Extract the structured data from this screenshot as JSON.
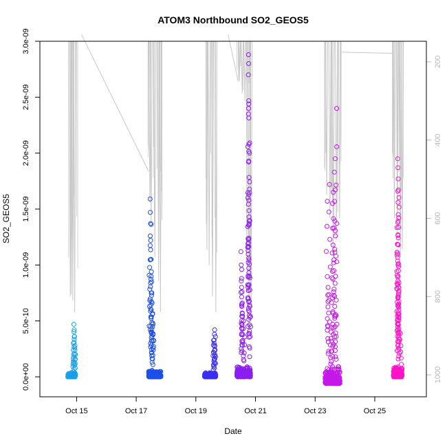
{
  "chart_data": {
    "type": "scatter",
    "title": "ATOM3 Northbound SO2_GEOS5",
    "xlabel": "Date",
    "ylabel": "SO2_GEOS5",
    "xlim": [
      "2017-10-14T00:00",
      "2017-10-26T12:00"
    ],
    "ylim": [
      -1e-10,
      3e-09
    ],
    "x_ticks": [
      "Oct 15",
      "Oct 17",
      "Oct 19",
      "Oct 21",
      "Oct 23",
      "Oct 25"
    ],
    "y_ticks": [
      "0.0e+00",
      "5.0e-10",
      "1.0e-09",
      "1.5e-09",
      "2.0e-09",
      "2.5e-09",
      "3.0e-09"
    ],
    "right_axis": {
      "quantity": "pressure",
      "ticks": [
        "200",
        "400",
        "600",
        "800",
        "1000"
      ],
      "range": [
        130,
        1045
      ],
      "inverted": true,
      "color": "#b8b8b8"
    },
    "series": [
      {
        "color": "#1a9fe8",
        "x_range": [
          "2017-10-14T17:00",
          "2017-10-14T23:00"
        ],
        "y_base": [
          0,
          4e-11
        ],
        "peaks": [
          [
            0.8,
            4.7e-10
          ],
          [
            0.85,
            4.2e-10
          ],
          [
            0.9,
            3.6e-10
          ],
          [
            0.95,
            2.8e-10
          ],
          [
            0.7,
            1.6e-10
          ]
        ]
      },
      {
        "color": "#1d4fe8",
        "x_range": [
          "2017-10-17T10:00",
          "2017-10-17T20:00"
        ],
        "y_base": [
          0,
          6e-11
        ],
        "peaks": [
          [
            0.12,
            1.59e-09
          ],
          [
            0.13,
            1.47e-09
          ],
          [
            0.15,
            1.37e-09
          ],
          [
            0.16,
            1.22e-09
          ],
          [
            0.2,
            1.05e-09
          ],
          [
            0.22,
            9.4e-10
          ],
          [
            0.24,
            8.5e-10
          ],
          [
            0.26,
            7.5e-10
          ],
          [
            0.28,
            6.6e-10
          ],
          [
            0.3,
            5.6e-10
          ],
          [
            0.32,
            4.5e-10
          ],
          [
            0.34,
            3.8e-10
          ]
        ]
      },
      {
        "color": "#3a2ef2",
        "x_range": [
          "2017-10-19T07:00",
          "2017-10-19T16:00"
        ],
        "y_base": [
          0,
          4e-11
        ],
        "peaks": [
          [
            0.9,
            4.2e-10
          ],
          [
            0.88,
            3.8e-10
          ],
          [
            0.86,
            3.3e-10
          ],
          [
            0.92,
            2.8e-10
          ],
          [
            0.8,
            2.2e-10
          ]
        ]
      },
      {
        "color": "#8a1ff0",
        "x_range": [
          "2017-10-20T09:00",
          "2017-10-20T20:00"
        ],
        "y_base": [
          0,
          1e-10
        ],
        "peaks": [
          [
            0.85,
            2.88e-09
          ],
          [
            0.86,
            2.8e-09
          ],
          [
            0.84,
            2.7e-09
          ],
          [
            0.87,
            2.44e-09
          ],
          [
            0.85,
            2.35e-09
          ],
          [
            0.88,
            2.08e-09
          ],
          [
            0.86,
            1.92e-09
          ],
          [
            0.87,
            1.63e-09
          ],
          [
            0.88,
            1.58e-09
          ],
          [
            0.89,
            1.43e-09
          ],
          [
            0.9,
            1.36e-09
          ],
          [
            0.88,
            1.24e-09
          ],
          [
            0.3,
            1.12e-09
          ],
          [
            0.32,
            1e-09
          ],
          [
            0.35,
            8.8e-10
          ],
          [
            0.92,
            9e-10
          ],
          [
            0.38,
            7.6e-10
          ],
          [
            0.4,
            6.6e-10
          ],
          [
            0.95,
            6.3e-10
          ],
          [
            0.42,
            5.4e-10
          ],
          [
            0.5,
            5e-10
          ]
        ]
      },
      {
        "color": "#c418e8",
        "x_range": [
          "2017-10-23T08:00",
          "2017-10-23T20:00"
        ],
        "y_base": [
          -6e-11,
          1e-10
        ],
        "peaks": [
          [
            0.78,
            2.4e-09
          ],
          [
            0.68,
            1.95e-09
          ],
          [
            0.62,
            1.83e-09
          ],
          [
            0.3,
            1.72e-09
          ],
          [
            0.55,
            1.65e-09
          ],
          [
            0.5,
            1.55e-09
          ],
          [
            0.15,
            1.57e-09
          ],
          [
            0.6,
            1.33e-09
          ],
          [
            0.7,
            1.26e-09
          ],
          [
            0.58,
            1.02e-09
          ],
          [
            0.2,
            8e-10
          ],
          [
            0.18,
            7.3e-10
          ],
          [
            0.65,
            6.3e-10
          ],
          [
            0.75,
            5.5e-10
          ],
          [
            0.4,
            4e-10
          ],
          [
            0.45,
            3.2e-10
          ],
          [
            0.12,
            -5e-11
          ]
        ]
      },
      {
        "color": "#ff14c8",
        "x_range": [
          "2017-10-25T15:00",
          "2017-10-25T22:00"
        ],
        "y_base": [
          0,
          1e-10
        ],
        "peaks": [
          [
            0.5,
            1.95e-09
          ],
          [
            0.52,
            1.87e-09
          ],
          [
            0.55,
            1.77e-09
          ],
          [
            0.5,
            1.66e-09
          ],
          [
            0.53,
            1.56e-09
          ],
          [
            0.55,
            1.45e-09
          ],
          [
            0.5,
            1.38e-09
          ],
          [
            0.52,
            1.27e-09
          ],
          [
            0.56,
            1.18e-09
          ],
          [
            0.5,
            1.1e-09
          ],
          [
            0.53,
            1e-09
          ],
          [
            0.55,
            9e-10
          ],
          [
            0.5,
            8.2e-10
          ],
          [
            0.58,
            7.4e-10
          ],
          [
            0.6,
            6.5e-10
          ],
          [
            0.62,
            5.6e-10
          ],
          [
            0.8,
            3.9e-10
          ]
        ]
      }
    ],
    "pressure_trace": {
      "color": "#c8c8c8",
      "flights": [
        {
          "x_range": [
            "2017-10-14T18:00",
            "2017-10-15T00:00"
          ],
          "spikes": [
            [
              0.15,
              800
            ],
            [
              0.3,
              795
            ],
            [
              0.5,
              810
            ],
            [
              0.75,
              840
            ]
          ]
        },
        {
          "x_range": [
            "2017-10-17T10:00",
            "2017-10-17T20:00"
          ],
          "spikes": [
            [
              0.1,
              560
            ],
            [
              0.2,
              620
            ],
            [
              0.5,
              700
            ],
            [
              0.8,
              760
            ],
            [
              0.95,
              840
            ]
          ]
        },
        {
          "x_range": [
            "2017-10-19T08:00",
            "2017-10-19T17:00"
          ],
          "spikes": [
            [
              0.1,
              680
            ],
            [
              0.3,
              720
            ],
            [
              0.6,
              800
            ],
            [
              0.9,
              840
            ]
          ]
        },
        {
          "x_range": [
            "2017-10-20T10:00",
            "2017-10-20T21:00"
          ],
          "spikes": [
            [
              0.1,
              250
            ],
            [
              0.3,
              280
            ],
            [
              0.5,
              300
            ],
            [
              0.8,
              900
            ],
            [
              0.95,
              850
            ]
          ]
        },
        {
          "x_range": [
            "2017-10-23T08:00",
            "2017-10-23T21:00"
          ],
          "spikes": [
            [
              0.1,
              540
            ],
            [
              0.3,
              600
            ],
            [
              0.5,
              690
            ],
            [
              0.7,
              650
            ],
            [
              0.9,
              600
            ]
          ]
        },
        {
          "x_range": [
            "2017-10-25T15:00",
            "2017-10-25T23:00"
          ],
          "spikes": [
            [
              0.1,
              600
            ],
            [
              0.4,
              640
            ],
            [
              0.7,
              700
            ],
            [
              0.9,
              680
            ]
          ]
        }
      ],
      "connectors": [
        [
          [
            "2017-10-15T04:00",
            130
          ],
          [
            "2017-10-17T10:00",
            480
          ]
        ],
        [
          [
            "2017-10-20T02:00",
            130
          ],
          [
            "2017-10-20T10:00",
            250
          ]
        ],
        [
          [
            "2017-10-23T20:00",
            175
          ],
          [
            "2017-10-25T15:00",
            178
          ]
        ]
      ]
    }
  }
}
